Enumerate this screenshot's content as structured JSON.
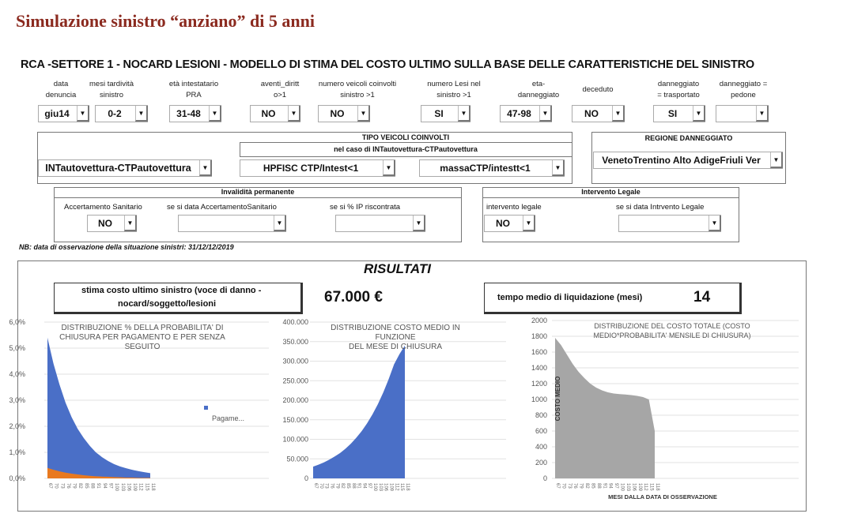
{
  "title": "Simulazione sinistro “anziano” di 5 anni",
  "subtitle": "RCA -SETTORE 1 - NOCARD LESIONI  - MODELLO DI STIMA DEL COSTO ULTIMO SULLA BASE DELLE CARATTERISTICHE DEL SINISTRO",
  "fields": [
    {
      "l1": "data",
      "l2": "denuncia",
      "value": "giu14"
    },
    {
      "l1": "mesi tardività",
      "l2": "sinistro",
      "value": "0-2"
    },
    {
      "l1": "età intestatario",
      "l2": "PRA",
      "value": "31-48"
    },
    {
      "l1": "aventi_diritt",
      "l2": "o>1",
      "value": "NO"
    },
    {
      "l1": "numero veicoli coinvolti",
      "l2": "sinistro >1",
      "value": "NO"
    },
    {
      "l1": "numero Lesi nel",
      "l2": "sinistro >1",
      "value": "SI"
    },
    {
      "l1": "eta-",
      "l2": "danneggiato",
      "value": "47-98"
    },
    {
      "l1": "deceduto",
      "l2": "",
      "value": "NO"
    },
    {
      "l1": "danneggiato",
      "l2": "= trasportato",
      "value": "SI"
    },
    {
      "l1": "danneggiato =",
      "l2": "pedone",
      "value": ""
    }
  ],
  "tipo": {
    "header": "TIPO VEICOLI COINVOLTI",
    "subheader": "nel caso di INTautovettura-CTPautovettura",
    "tipo_value": "INTautovettura-CTPautovettura",
    "hpfisc_value": "HPFISC CTP/Intest<1",
    "massa_value": "massaCTP/intestt<1"
  },
  "regione": {
    "header": "REGIONE DANNEGGIATO",
    "value": "VenetoTrentino Alto AdigeFriuli Ver"
  },
  "invalidita": {
    "header": "Invalidità permanente",
    "acc_label": "Accertamento Sanitario",
    "acc_value": "NO",
    "data_label": "se si data AccertamentoSanitario",
    "data_value": "",
    "ip_label": "se si % IP riscontrata",
    "ip_value": ""
  },
  "legale": {
    "header": "Intervento Legale",
    "label": "intervento legale",
    "value": "NO",
    "data_label": "se si data Intrvento Legale",
    "data_value": ""
  },
  "nb": "NB:  data di osservazione della situazione sinistri: 31/12/12/2019",
  "results": {
    "title": "RISULTATI",
    "cost_label_1": "stima costo ultimo sinistro (voce di danno -",
    "cost_label_2": "nocard/soggetto/lesioni",
    "cost_value": "67.000 €",
    "time_label": "tempo medio di liquidazione (mesi)",
    "time_value": "14"
  },
  "chart_data": [
    {
      "type": "area",
      "title": [
        "DISTRIBUZIONE % DELLA PROBABILITA' DI",
        "CHIUSURA PER PAGAMENTO E PER SENZA",
        "SEGUITO"
      ],
      "categories": [
        67,
        70,
        73,
        76,
        79,
        82,
        85,
        88,
        91,
        94,
        97,
        100,
        103,
        106,
        109,
        112,
        115,
        118
      ],
      "series": [
        {
          "name": "Pagame...",
          "color": "#4a6fc7",
          "values": [
            5.4,
            4.4,
            3.6,
            2.9,
            2.35,
            1.9,
            1.55,
            1.25,
            1.0,
            0.82,
            0.67,
            0.55,
            0.46,
            0.39,
            0.33,
            0.28,
            0.24,
            0.2
          ]
        },
        {
          "color": "#e8791f",
          "values": [
            0.4,
            0.33,
            0.27,
            0.22,
            0.18,
            0.15,
            0.12,
            0.1,
            0.08,
            0.07,
            0.06,
            0.05,
            0.04,
            0.03,
            0.03,
            0.02,
            0.02,
            0.02
          ]
        }
      ],
      "ylim": [
        0,
        6
      ],
      "yticks": [
        "0,0%",
        "1,0%",
        "2,0%",
        "3,0%",
        "4,0%",
        "5,0%",
        "6,0%"
      ],
      "legend": "right",
      "grid": true
    },
    {
      "type": "area",
      "title": [
        "DISTRIBUZIONE COSTO MEDIO IN",
        "FUNZIONE",
        "DEL MESE DI CHIUSURA"
      ],
      "categories": [
        67,
        70,
        73,
        76,
        79,
        82,
        85,
        88,
        91,
        94,
        97,
        100,
        103,
        106,
        109,
        112,
        115,
        118
      ],
      "series": [
        {
          "color": "#4a6fc7",
          "values": [
            30000,
            35000,
            41000,
            48000,
            56000,
            65000,
            76000,
            89000,
            104000,
            121000,
            141000,
            164000,
            190000,
            220000,
            254000,
            292000,
            318000,
            340000
          ]
        }
      ],
      "ylim": [
        0,
        400000
      ],
      "yticks": [
        "0",
        "50.000",
        "100.000",
        "150.000",
        "200.000",
        "250.000",
        "300.000",
        "350.000",
        "400.000"
      ],
      "grid": true
    },
    {
      "type": "area",
      "title": [
        "DISTRIBUZIONE  DEL COSTO TOTALE (COSTO",
        "MEDIO*PROBABILITA'  MENSILE  DI CHIUSURA)"
      ],
      "categories": [
        67,
        70,
        73,
        76,
        79,
        82,
        85,
        88,
        91,
        94,
        97,
        100,
        103,
        106,
        109,
        112,
        115,
        118
      ],
      "series": [
        {
          "color": "#a6a6a6",
          "values": [
            1780,
            1690,
            1570,
            1450,
            1350,
            1270,
            1200,
            1150,
            1115,
            1090,
            1075,
            1068,
            1062,
            1055,
            1045,
            1030,
            1000,
            600
          ]
        }
      ],
      "ylim": [
        0,
        2000
      ],
      "yticks": [
        "0",
        "200",
        "400",
        "600",
        "800",
        "1000",
        "1200",
        "1400",
        "1600",
        "1800",
        "2000"
      ],
      "ylabel": "COSTO MEDIO",
      "xlabel": "MESI DALLA DATA DI OSSERVAZIONE",
      "grid": true
    }
  ]
}
